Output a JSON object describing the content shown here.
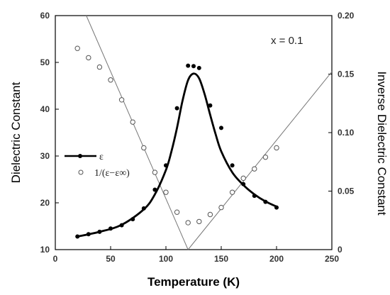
{
  "chart_data": {
    "type": "scatter",
    "xlabel": "Temperature (K)",
    "ylabel": "Dielectric Constant",
    "y2label": "Inverse Dielectric Constant",
    "annotation": "x = 0.1",
    "xlim": [
      0,
      250
    ],
    "ylim": [
      10,
      60
    ],
    "y2lim": [
      0,
      0.2
    ],
    "xticks": [
      "0",
      "50",
      "100",
      "150",
      "200",
      "250"
    ],
    "yticks": [
      "10",
      "20",
      "30",
      "40",
      "50",
      "60"
    ],
    "y2ticks": [
      "0",
      "0.05",
      "0.10",
      "0.15",
      "0.20"
    ],
    "legend": {
      "position": "left-middle",
      "entries": [
        "ε",
        "1/(ε−ε∞)"
      ]
    },
    "series": [
      {
        "name": "ε",
        "axis": "left",
        "marker": "filled-circle",
        "x": [
          20,
          30,
          40,
          50,
          60,
          70,
          80,
          90,
          100,
          110,
          120,
          125,
          130,
          140,
          150,
          160,
          170,
          180,
          190,
          200
        ],
        "y": [
          12.8,
          13.3,
          13.8,
          14.5,
          15.2,
          16.5,
          18.8,
          22.8,
          28.0,
          40.2,
          49.3,
          49.2,
          48.8,
          40.8,
          36.0,
          28.0,
          24.0,
          21.5,
          20.2,
          19.0
        ]
      },
      {
        "name": "1/(ε−ε∞)",
        "axis": "right",
        "marker": "open-circle",
        "x": [
          20,
          30,
          40,
          50,
          60,
          70,
          80,
          90,
          100,
          110,
          120,
          130,
          140,
          150,
          160,
          170,
          180,
          190,
          200
        ],
        "y": [
          0.172,
          0.164,
          0.156,
          0.145,
          0.128,
          0.109,
          0.087,
          0.066,
          0.049,
          0.032,
          0.023,
          0.024,
          0.03,
          0.036,
          0.049,
          0.061,
          0.069,
          0.079,
          0.087
        ]
      }
    ],
    "fit_curve": {
      "x": [
        20,
        40,
        60,
        80,
        90,
        100,
        105,
        110,
        115,
        120,
        125,
        130,
        135,
        140,
        145,
        150,
        160,
        170,
        180,
        190,
        200
      ],
      "y": [
        12.8,
        13.8,
        15.3,
        18.6,
        21.8,
        27.0,
        31.0,
        36.0,
        41.8,
        46.2,
        47.6,
        46.6,
        43.2,
        38.8,
        34.6,
        31.0,
        26.5,
        23.8,
        21.8,
        20.3,
        19.2
      ]
    },
    "linear_fits": [
      {
        "axis": "right",
        "x": [
          28,
          120
        ],
        "y": [
          0.2,
          0.0
        ]
      },
      {
        "axis": "right",
        "x": [
          120,
          250
        ],
        "y": [
          0.0,
          0.152
        ]
      }
    ]
  }
}
